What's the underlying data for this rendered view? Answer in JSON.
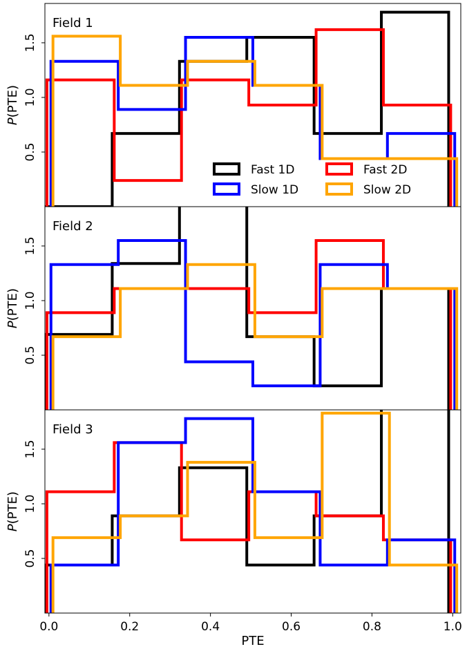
{
  "chart_data": [
    {
      "type": "histogram",
      "title": "Field 1",
      "xlabel": "",
      "ylabel": "P(PTE)",
      "xlim": [
        -0.01,
        1.02
      ],
      "ylim": [
        0,
        1.86
      ],
      "yticks": [
        "0.5",
        "1.0",
        "1.5"
      ],
      "bin_edges": [
        0,
        0.1667,
        0.3333,
        0.5,
        0.6667,
        0.8333,
        1.0
      ],
      "legend": {
        "position": "lower-right",
        "ncol": 2
      },
      "series": [
        {
          "name": "Fast 1D",
          "color": "#000000",
          "offset": -0.01,
          "values": [
            0.0,
            0.67,
            1.33,
            1.55,
            0.67,
            1.78
          ]
        },
        {
          "name": "Fast 2D",
          "color": "#ff0000",
          "offset": -0.005,
          "values": [
            1.16,
            0.24,
            1.16,
            0.93,
            1.62,
            0.93
          ]
        },
        {
          "name": "Slow 1D",
          "color": "#0000ff",
          "offset": 0.005,
          "values": [
            1.33,
            0.89,
            1.55,
            1.11,
            0.44,
            0.67
          ]
        },
        {
          "name": "Slow 2D",
          "color": "#ffa500",
          "offset": 0.01,
          "values": [
            1.56,
            1.11,
            1.33,
            1.11,
            0.44,
            0.44
          ]
        }
      ]
    },
    {
      "type": "histogram",
      "title": "Field 2",
      "xlabel": "",
      "ylabel": "P(PTE)",
      "xlim": [
        -0.01,
        1.02
      ],
      "ylim": [
        0,
        1.86
      ],
      "yticks": [
        "0.5",
        "1.0",
        "1.5"
      ],
      "bin_edges": [
        0,
        0.1667,
        0.3333,
        0.5,
        0.6667,
        0.8333,
        1.0
      ],
      "series": [
        {
          "name": "Fast 1D",
          "color": "#000000",
          "offset": -0.01,
          "values": [
            0.69,
            1.34,
            2.0,
            0.67,
            0.22,
            1.11
          ]
        },
        {
          "name": "Fast 2D",
          "color": "#ff0000",
          "offset": -0.005,
          "values": [
            0.89,
            1.11,
            1.11,
            0.89,
            1.55,
            1.11
          ]
        },
        {
          "name": "Slow 1D",
          "color": "#0000ff",
          "offset": 0.005,
          "values": [
            1.33,
            1.55,
            0.44,
            0.22,
            1.33,
            1.11
          ]
        },
        {
          "name": "Slow 2D",
          "color": "#ffa500",
          "offset": 0.01,
          "values": [
            0.67,
            1.11,
            1.33,
            0.67,
            1.11,
            1.11
          ]
        }
      ]
    },
    {
      "type": "histogram",
      "title": "Field 3",
      "xlabel": "PTE",
      "ylabel": "P(PTE)",
      "xlim": [
        -0.01,
        1.02
      ],
      "ylim": [
        0,
        1.86
      ],
      "yticks": [
        "0.5",
        "1.0",
        "1.5"
      ],
      "xticks": [
        "0.0",
        "0.2",
        "0.4",
        "0.6",
        "0.8",
        "1.0"
      ],
      "bin_edges": [
        0,
        0.1667,
        0.3333,
        0.5,
        0.6667,
        0.8333,
        1.0
      ],
      "series": [
        {
          "name": "Fast 1D",
          "color": "#000000",
          "offset": -0.01,
          "values": [
            0.44,
            0.89,
            1.33,
            0.44,
            0.89,
            2.0
          ]
        },
        {
          "name": "Fast 2D",
          "color": "#ff0000",
          "offset": -0.005,
          "values": [
            1.11,
            1.56,
            0.67,
            1.11,
            0.89,
            0.67
          ]
        },
        {
          "name": "Slow 1D",
          "color": "#0000ff",
          "offset": 0.005,
          "values": [
            0.44,
            1.56,
            1.78,
            1.11,
            0.44,
            0.67
          ]
        },
        {
          "name": "Slow 2D",
          "color": "#ffa500",
          "offset": 0.01,
          "values": [
            0.69,
            0.89,
            1.38,
            0.69,
            1.83,
            0.44
          ]
        }
      ]
    }
  ]
}
